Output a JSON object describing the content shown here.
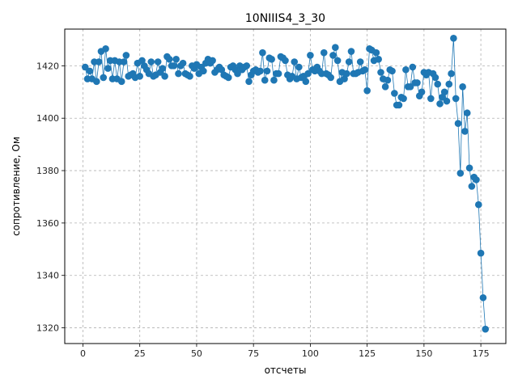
{
  "chart_data": {
    "type": "line",
    "title": "10NIIIS4_3_30",
    "xlabel": "отсчеты",
    "ylabel": "сопротивление, Ом",
    "xlim": [
      -8,
      186
    ],
    "ylim": [
      1314,
      1434
    ],
    "xticks": [
      0,
      25,
      50,
      75,
      100,
      125,
      150,
      175
    ],
    "yticks": [
      1320,
      1340,
      1360,
      1380,
      1400,
      1420
    ],
    "grid": true,
    "marker": "circle",
    "color": "#1f77b4",
    "series": [
      {
        "x": [
          1,
          2,
          3,
          4,
          5,
          6,
          7,
          8,
          9,
          10,
          11,
          12,
          13,
          14,
          15,
          16,
          17,
          18,
          19,
          20,
          21,
          22,
          23,
          24,
          25,
          26,
          27,
          28,
          29,
          30,
          31,
          32,
          33,
          34,
          35,
          36,
          37,
          38,
          39,
          40,
          41,
          42,
          43,
          44,
          45,
          46,
          47,
          48,
          49,
          50,
          51,
          52,
          53,
          54,
          55,
          56,
          57,
          58,
          59,
          60,
          61,
          62,
          63,
          64,
          65,
          66,
          67,
          68,
          69,
          70,
          71,
          72,
          73,
          74,
          75,
          76,
          77,
          78,
          79,
          80,
          81,
          82,
          83,
          84,
          85,
          86,
          87,
          88,
          89,
          90,
          91,
          92,
          93,
          94,
          95,
          96,
          97,
          98,
          99,
          100,
          101,
          102,
          103,
          104,
          105,
          106,
          107,
          108,
          109,
          110,
          111,
          112,
          113,
          114,
          115,
          116,
          117,
          118,
          119,
          120,
          121,
          122,
          123,
          124,
          125,
          126,
          127,
          128,
          129,
          130,
          131,
          132,
          133,
          134,
          135,
          136,
          137,
          138,
          139,
          140,
          141,
          142,
          143,
          144,
          145,
          146,
          147,
          148,
          149,
          150,
          151,
          152,
          153,
          154,
          155,
          156,
          157,
          158,
          159,
          160,
          161,
          162,
          163,
          164,
          165,
          166,
          167,
          168,
          169,
          170,
          171,
          172,
          173,
          174,
          175,
          176,
          177
        ],
        "y": [
          1419.5,
          1415,
          1418,
          1415,
          1421.5,
          1414,
          1421.5,
          1425.5,
          1415.5,
          1426.5,
          1419,
          1422,
          1415,
          1422,
          1415,
          1421.5,
          1414,
          1421.5,
          1424,
          1416,
          1416.5,
          1417,
          1415.5,
          1421,
          1416,
          1422,
          1420,
          1418.5,
          1417,
          1421.5,
          1416,
          1416.5,
          1421.5,
          1417.5,
          1419,
          1416,
          1423.5,
          1422.5,
          1420,
          1420,
          1422.5,
          1417,
          1420,
          1421,
          1417,
          1416.5,
          1416,
          1420,
          1419,
          1420.5,
          1417,
          1419.5,
          1418,
          1421,
          1422.5,
          1421,
          1422,
          1417.5,
          1418.5,
          1419.5,
          1418.5,
          1416.5,
          1416,
          1415.5,
          1419.5,
          1420,
          1418.5,
          1417,
          1420,
          1418.5,
          1419.5,
          1420,
          1414,
          1416.5,
          1418,
          1418.5,
          1417.5,
          1418,
          1425,
          1414.5,
          1418,
          1423,
          1422.5,
          1414.5,
          1417,
          1417,
          1423.5,
          1423,
          1422,
          1416.5,
          1415,
          1416,
          1421.5,
          1415,
          1419.5,
          1415.5,
          1416,
          1414,
          1417,
          1424,
          1418.5,
          1418,
          1419.5,
          1418,
          1417,
          1425,
          1417,
          1416.5,
          1415.5,
          1424,
          1427,
          1422,
          1414,
          1417.5,
          1415,
          1417,
          1421.5,
          1425.5,
          1417,
          1417,
          1417.5,
          1421.5,
          1418,
          1418.5,
          1410.5,
          1426.5,
          1426,
          1422,
          1425,
          1422.5,
          1417.5,
          1415,
          1412,
          1414.5,
          1418.5,
          1418,
          1409.5,
          1405,
          1405,
          1408,
          1407.5,
          1418.5,
          1412,
          1412,
          1419.5,
          1413.5,
          1413.5,
          1408.5,
          1410,
          1417.5,
          1416.5,
          1417.5,
          1407.5,
          1417,
          1415.5,
          1413,
          1405.5,
          1408,
          1410,
          1406.5,
          1413,
          1417,
          1430.5,
          1407.5,
          1398,
          1379,
          1412,
          1395,
          1402,
          1381,
          1374,
          1377.5,
          1376.5,
          1367,
          1348.5,
          1331.5,
          1319.5
        ]
      }
    ]
  }
}
